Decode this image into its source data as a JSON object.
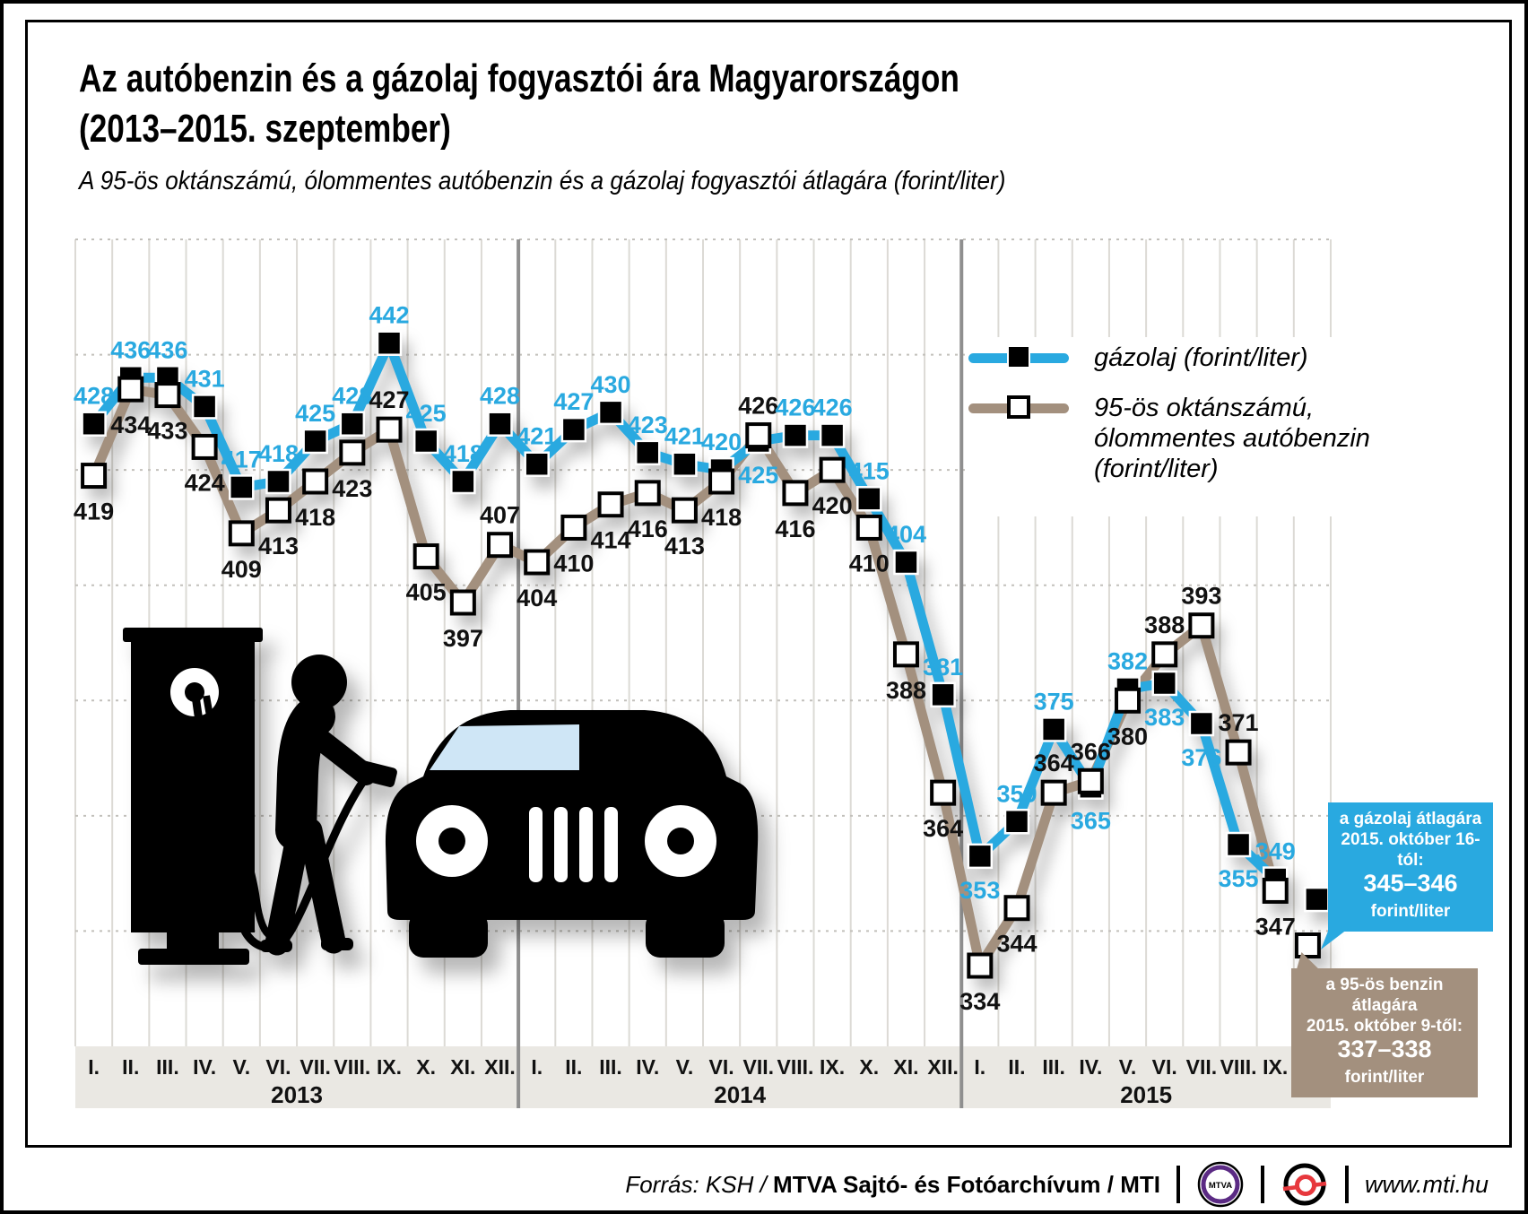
{
  "title_line1": "Az autóbenzin és a gázolaj fogyasztói ára Magyarországon",
  "title_line2": "(2013–2015. szeptember)",
  "subtitle": "A 95-ös oktánszámú, ólommentes autóbenzin és a gázolaj fogyasztói átlagára (forint/liter)",
  "colors": {
    "diesel": "#29a9e0",
    "benzin": "#a3907e",
    "band": "#eae8e3"
  },
  "chart_data": {
    "type": "line",
    "title": "Az autóbenzin és a gázolaj fogyasztói ára Magyarországon (2013–2015. szeptember)",
    "unit": "forint/liter",
    "ylim": [
      320,
      460
    ],
    "gridline_step": 20,
    "grid": "dotted-horizontal, monthly-vertical",
    "legend_position": "upper-right",
    "years": [
      {
        "label": "2013",
        "months": [
          "I.",
          "II.",
          "III.",
          "IV.",
          "V.",
          "VI.",
          "VII.",
          "VIII.",
          "IX.",
          "X.",
          "XI.",
          "XII."
        ]
      },
      {
        "label": "2014",
        "months": [
          "I.",
          "II.",
          "III.",
          "IV.",
          "V.",
          "VI.",
          "VII.",
          "VIII.",
          "IX.",
          "X.",
          "XI.",
          "XII."
        ]
      },
      {
        "label": "2015",
        "months": [
          "I.",
          "II.",
          "III.",
          "IV.",
          "V.",
          "VI.",
          "VII.",
          "VIII.",
          "IX.",
          "X."
        ]
      }
    ],
    "series": [
      {
        "name": "gázolaj (forint/liter)",
        "key": "gazolaj",
        "color": "#29a9e0",
        "label_color": "#29a9e0",
        "marker": "black-square",
        "values": [
          428,
          436,
          436,
          431,
          417,
          418,
          425,
          428,
          442,
          425,
          418,
          428,
          421,
          427,
          430,
          423,
          421,
          420,
          425,
          426,
          426,
          415,
          404,
          381,
          353,
          359,
          375,
          365,
          382,
          383,
          376,
          355,
          349
        ],
        "extra_point": {
          "period": "2015. X.",
          "value": 345.5,
          "note": "345–346"
        }
      },
      {
        "name": "95-ös oktánszámú, ólommentes autóbenzin (forint/liter)",
        "key": "benzin",
        "color": "#a3907e",
        "label_color": "#111111",
        "marker": "white-square",
        "values": [
          419,
          434,
          433,
          424,
          409,
          413,
          418,
          423,
          427,
          405,
          397,
          407,
          404,
          410,
          414,
          416,
          413,
          418,
          426,
          416,
          420,
          410,
          388,
          364,
          334,
          344,
          364,
          366,
          380,
          388,
          393,
          371,
          347
        ],
        "extra_point": {
          "period": "2015. X.",
          "value": 337.5,
          "note": "337–338"
        }
      }
    ]
  },
  "legend": {
    "diesel_label": "gázolaj (forint/liter)",
    "benzin_label_lines": [
      "95-ös oktánszámú,",
      "ólommentes autóbenzin",
      "(forint/liter)"
    ]
  },
  "callouts": {
    "diesel": {
      "lines": [
        "a gázolaj átlagára",
        "2015. október 16-tól:"
      ],
      "value": "345–346",
      "unit": "forint/liter"
    },
    "benzin": {
      "lines": [
        "a 95-ös benzin átlagára",
        "2015. október 9-től:"
      ],
      "value": "337–338",
      "unit": "forint/liter"
    }
  },
  "footer": {
    "source_prefix": "Forrás: KSH / ",
    "source_main": "MTVA Sajtó- és Fotóarchívum / MTI",
    "website": "www.mti.hu",
    "mtva_text": "MTVA"
  }
}
